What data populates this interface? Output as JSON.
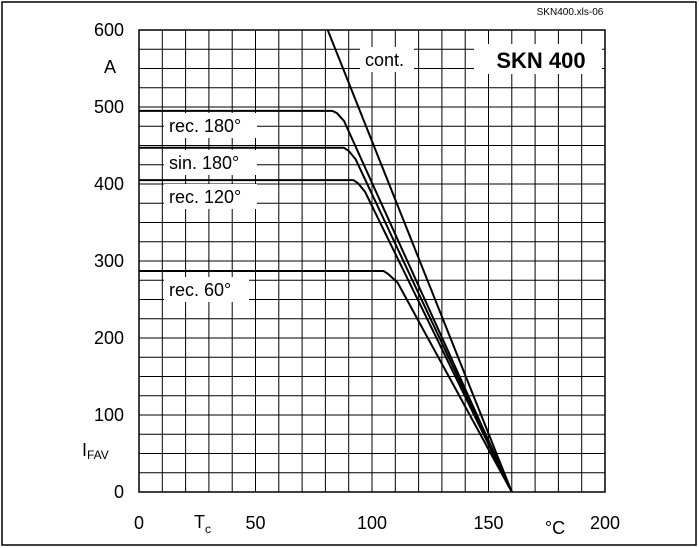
{
  "file_label": "SKN400.xls-06",
  "chart_data": {
    "type": "line",
    "title": "SKN 400",
    "x_unit": "°C",
    "y_unit": "A",
    "xlim": [
      0,
      200
    ],
    "ylim": [
      0,
      600
    ],
    "x_ticks": [
      "0",
      "50",
      "100",
      "150",
      "200"
    ],
    "y_ticks": [
      "0",
      "100",
      "200",
      "300",
      "400",
      "500",
      "600"
    ],
    "grid": true,
    "series": [
      {
        "name": "cont.",
        "points": [
          [
            81,
            600
          ],
          [
            160,
            0
          ]
        ]
      },
      {
        "name": "rec. 180°",
        "points": [
          [
            0,
            495
          ],
          [
            83,
            495
          ],
          [
            85,
            492
          ],
          [
            88,
            482
          ],
          [
            160,
            0
          ]
        ]
      },
      {
        "name": "sin. 180°",
        "points": [
          [
            0,
            447
          ],
          [
            88,
            447
          ],
          [
            90,
            443
          ],
          [
            93,
            432
          ],
          [
            160,
            0
          ]
        ]
      },
      {
        "name": "rec. 120°",
        "points": [
          [
            0,
            405
          ],
          [
            92,
            405
          ],
          [
            94,
            401
          ],
          [
            97,
            390
          ],
          [
            160,
            0
          ]
        ]
      },
      {
        "name": "rec. 60°",
        "points": [
          [
            0,
            287
          ],
          [
            105,
            287
          ],
          [
            107,
            283
          ],
          [
            111,
            272
          ],
          [
            160,
            0
          ]
        ]
      }
    ]
  }
}
